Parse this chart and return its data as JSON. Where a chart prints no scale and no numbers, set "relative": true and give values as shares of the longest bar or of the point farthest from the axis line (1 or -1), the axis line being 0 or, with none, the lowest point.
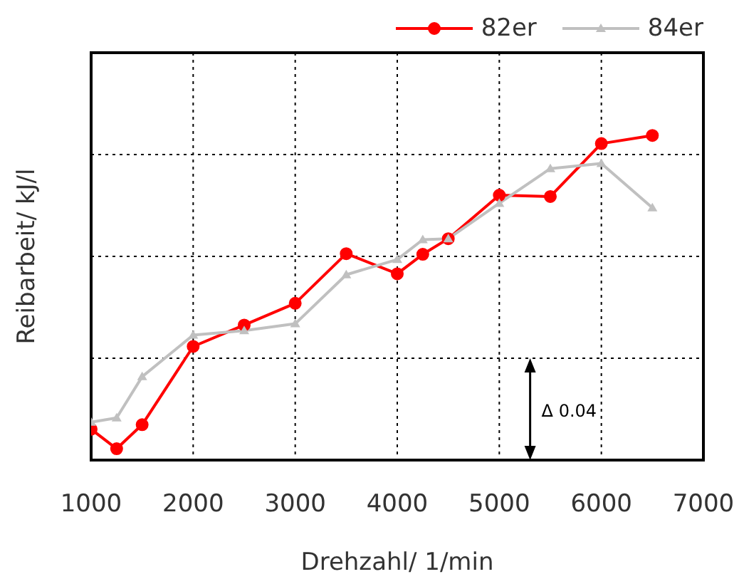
{
  "chart_data": {
    "type": "line",
    "xlabel": "Drehzahl/ 1/min",
    "ylabel": "Reibarbeit/ kJ/l",
    "relative": true,
    "x": [
      1000,
      1250,
      1500,
      2000,
      2500,
      3000,
      3500,
      4000,
      4250,
      4500,
      5000,
      5500,
      6000,
      6500
    ],
    "xlim": [
      1000,
      7000
    ],
    "xticks": [
      1000,
      2000,
      3000,
      4000,
      5000,
      6000,
      7000
    ],
    "series": [
      {
        "name": "82er",
        "color": "#ff0000",
        "marker": "circle",
        "values": [
          0.095,
          0.035,
          0.109,
          0.35,
          0.416,
          0.483,
          0.636,
          0.574,
          0.634,
          0.682,
          0.816,
          0.812,
          0.975,
          1
        ]
      },
      {
        "name": "84er",
        "color": "#c0c0c0",
        "marker": "triangle",
        "values": [
          0.117,
          0.13,
          0.257,
          0.385,
          0.399,
          0.42,
          0.571,
          0.618,
          0.679,
          0.682,
          0.791,
          0.898,
          0.914,
          0.777
        ]
      }
    ],
    "annotations": [
      "Δ 0.04"
    ],
    "grid": true,
    "legend": "top right",
    "line_style": "solid"
  }
}
